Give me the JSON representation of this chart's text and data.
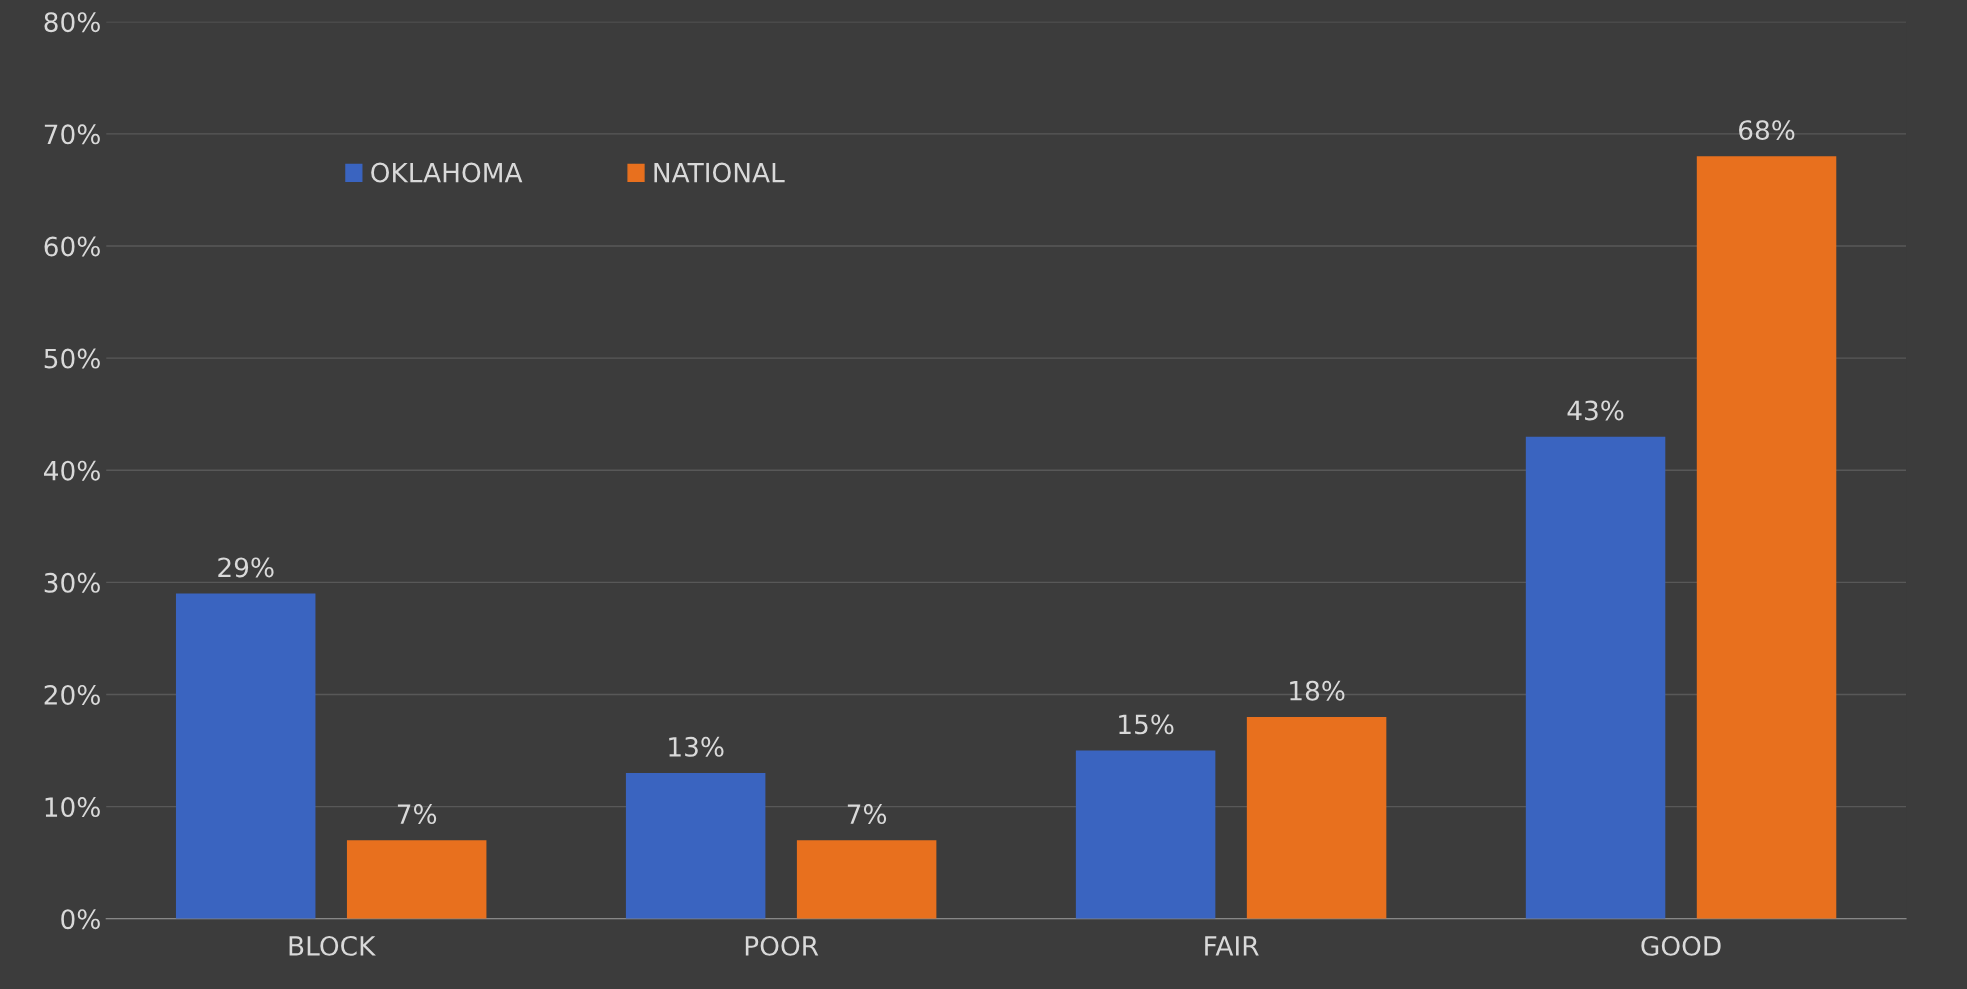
{
  "chart_data": {
    "type": "bar",
    "categories": [
      "BLOCK",
      "POOR",
      "FAIR",
      "GOOD"
    ],
    "series": [
      {
        "name": "OKLAHOMA",
        "color": "#3a64c0",
        "values": [
          29,
          13,
          15,
          43
        ],
        "value_labels": [
          "29%",
          "13%",
          "15%",
          "43%"
        ]
      },
      {
        "name": "NATIONAL",
        "color": "#e8701e",
        "values": [
          7,
          7,
          18,
          68
        ],
        "value_labels": [
          "7%",
          "7%",
          "18%",
          "68%"
        ]
      }
    ],
    "ylim": [
      0,
      80
    ],
    "yticks": [
      {
        "value": 0,
        "label": "0%"
      },
      {
        "value": 10,
        "label": "10%"
      },
      {
        "value": 20,
        "label": "20%"
      },
      {
        "value": 30,
        "label": "30%"
      },
      {
        "value": 40,
        "label": "40%"
      },
      {
        "value": 50,
        "label": "50%"
      },
      {
        "value": 60,
        "label": "60%"
      },
      {
        "value": 70,
        "label": "70%"
      },
      {
        "value": 80,
        "label": "80%"
      }
    ],
    "grid": "y",
    "legend": "top left"
  }
}
